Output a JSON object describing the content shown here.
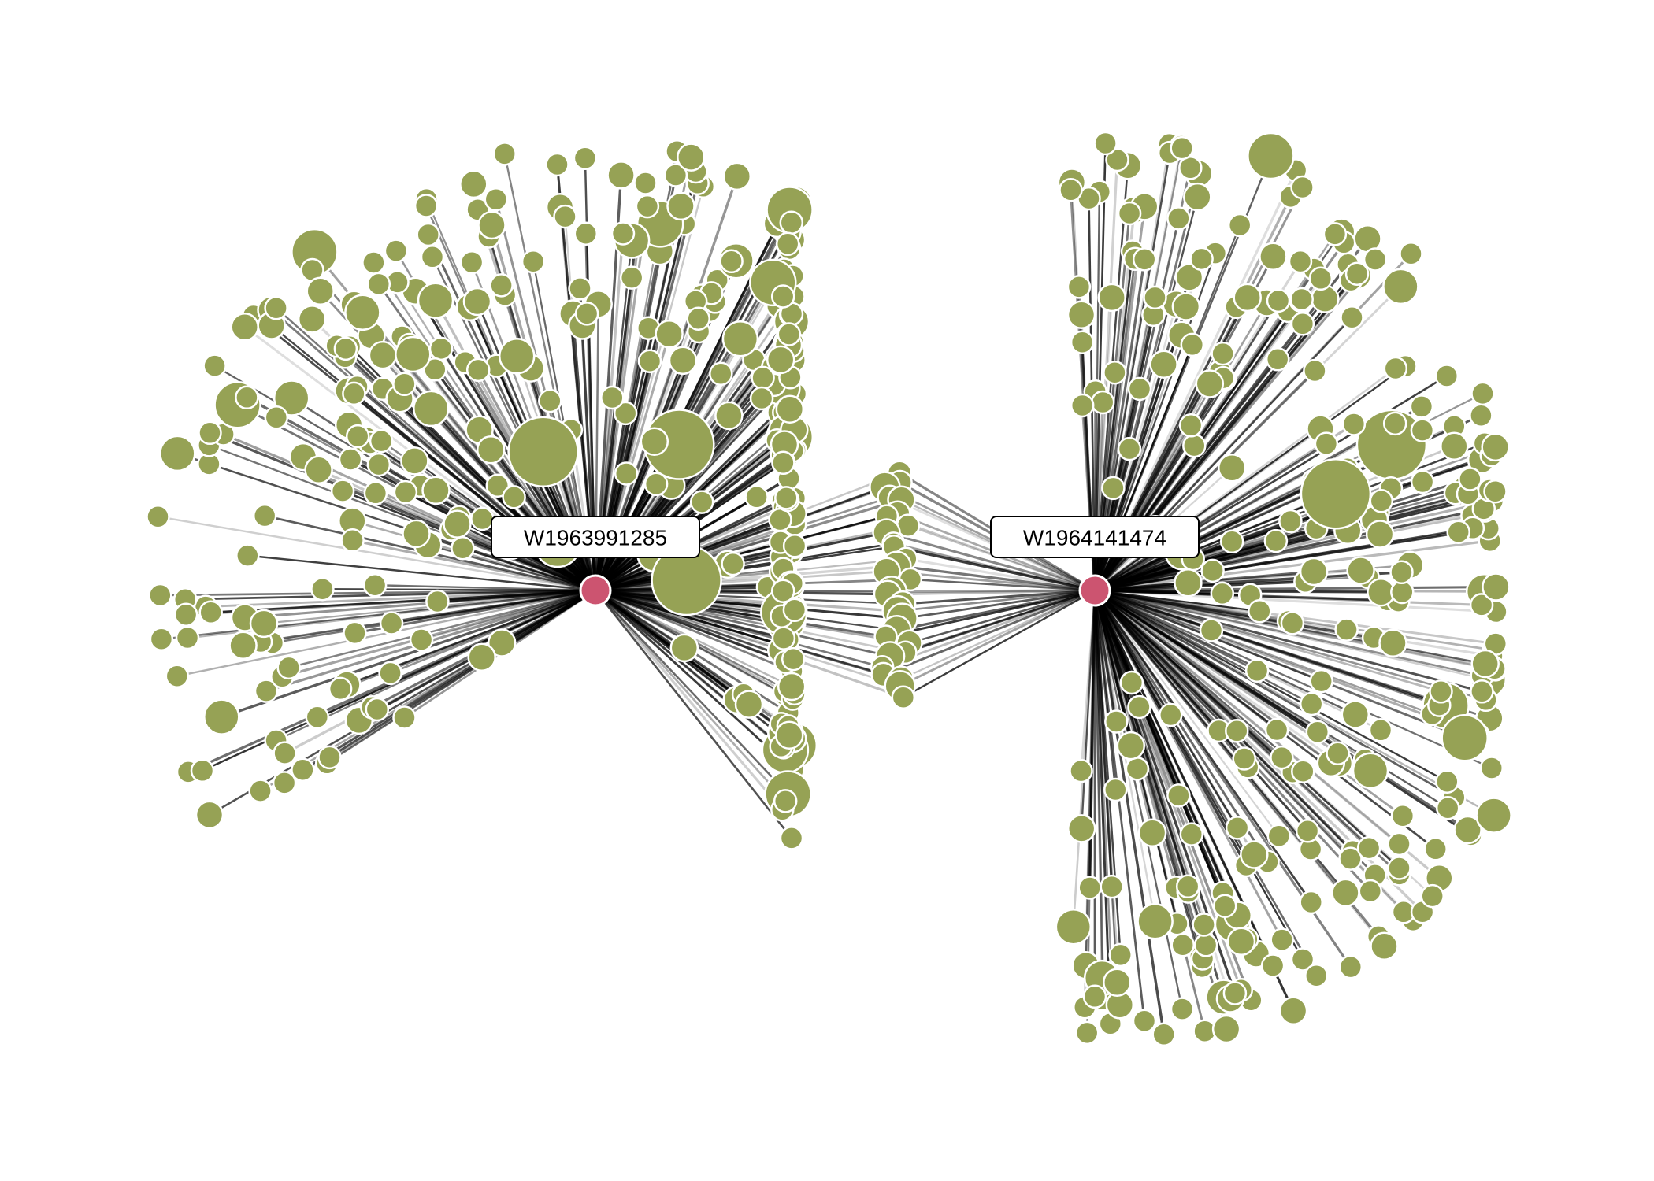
{
  "colors": {
    "hub_fill": "#cc5470",
    "leaf_fill": "#96a255",
    "node_stroke": "#ffffff",
    "edge": "#000000",
    "label_box": "#ffffff",
    "label_border": "#000000",
    "background": "#ffffff"
  },
  "hubs": [
    {
      "id": "W1963991285",
      "label": "W1963991285"
    },
    {
      "id": "W1964141474",
      "label": "W1964141474"
    }
  ],
  "groups": {
    "left_hub_only": {
      "hub": "W1963991285",
      "layout": "left-fan",
      "node_count": 330
    },
    "shared": {
      "hubs": [
        "W1963991285",
        "W1964141474"
      ],
      "layout": "center-column",
      "node_count": 30
    },
    "right_hub_only": {
      "hub": "W1964141474",
      "layout": "right-fan",
      "node_count": 290
    }
  }
}
